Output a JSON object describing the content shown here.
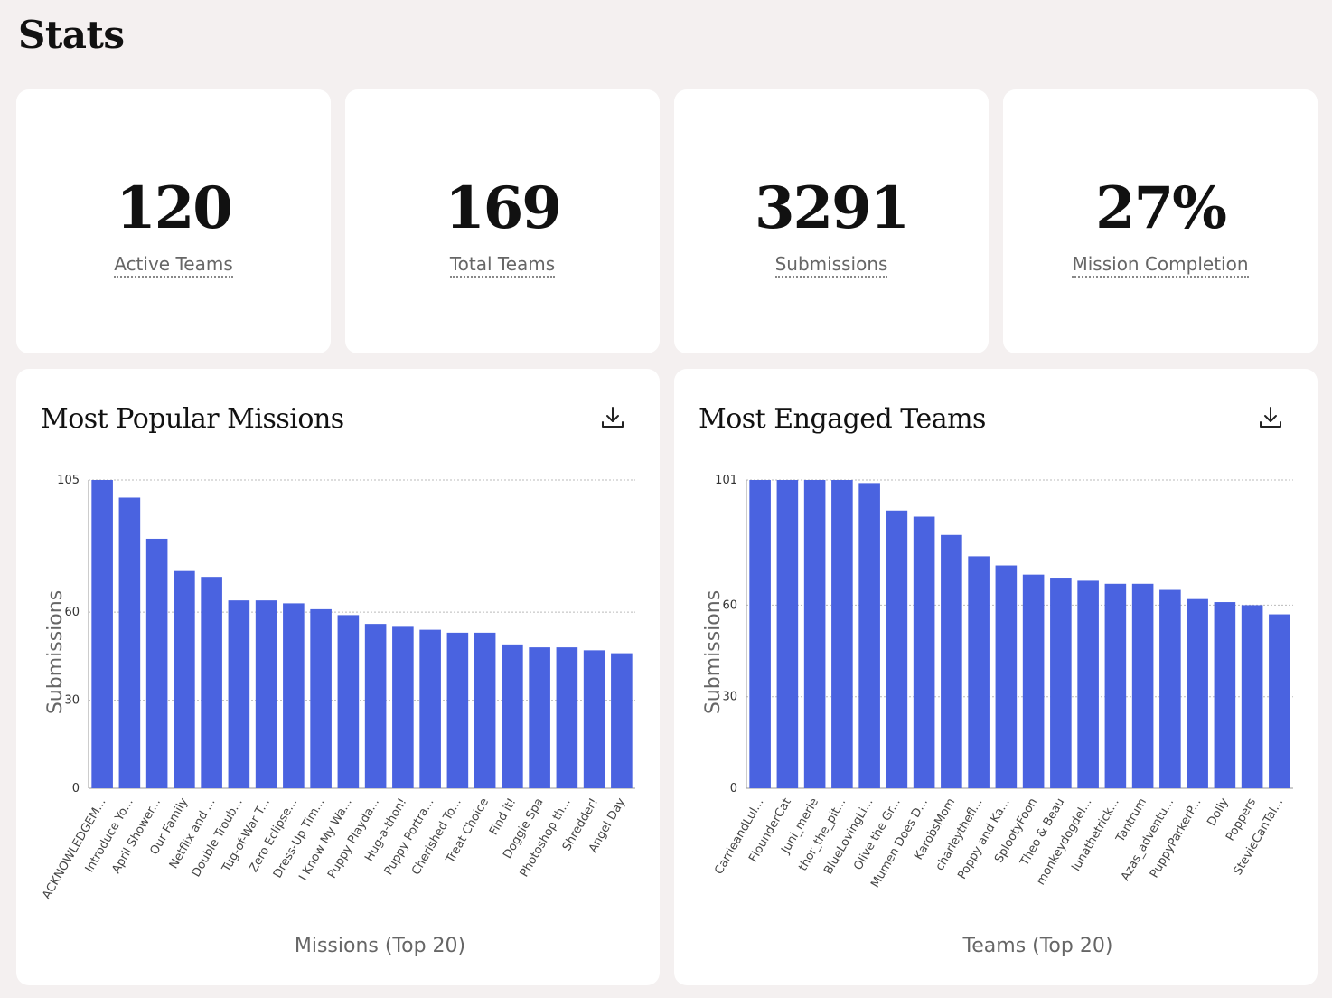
{
  "page": {
    "title": "Stats"
  },
  "stats": [
    {
      "value": "120",
      "label": "Active Teams"
    },
    {
      "value": "169",
      "label": "Total Teams"
    },
    {
      "value": "3291",
      "label": "Submissions"
    },
    {
      "value": "27%",
      "label": "Mission Completion"
    }
  ],
  "colors": {
    "bar": "#4a63e0",
    "background": "#f4f0f0",
    "card": "#ffffff"
  },
  "charts": {
    "missions": {
      "title": "Most Popular Missions",
      "download_icon": "download-icon"
    },
    "teams": {
      "title": "Most Engaged Teams",
      "download_icon": "download-icon"
    }
  },
  "chart_data": [
    {
      "type": "bar",
      "title": "Most Popular Missions",
      "xlabel": "Missions (Top 20)",
      "ylabel": "Submissions",
      "ylim": [
        0,
        105
      ],
      "yticks": [
        0,
        30,
        60,
        105
      ],
      "grid": true,
      "categories": [
        "ACKNOWLEDGEM...",
        "Introduce Yo...",
        "April Shower...",
        "Our Family",
        "Netflix and ...",
        "Double Troub...",
        "Tug-of-War T...",
        "Zero Eclipse...",
        "Dress-Up Tim...",
        "I Know My Wa...",
        "Puppy Playda...",
        "Hug-a-thon!",
        "Puppy Portra...",
        "Cherished To...",
        "Treat Choice",
        "Find it!",
        "Doggie Spa",
        "Photoshop th...",
        "Shredder!",
        "Angel Day"
      ],
      "values": [
        105,
        99,
        85,
        74,
        72,
        64,
        64,
        63,
        61,
        59,
        56,
        55,
        54,
        53,
        53,
        49,
        48,
        48,
        47,
        46
      ]
    },
    {
      "type": "bar",
      "title": "Most Engaged Teams",
      "xlabel": "Teams (Top 20)",
      "ylabel": "Submissions",
      "ylim": [
        0,
        101
      ],
      "yticks": [
        0,
        30,
        60,
        101
      ],
      "grid": true,
      "categories": [
        "CarrieandLul...",
        "FlounderCat",
        "Juni_merle",
        "thor_the_pit...",
        "BlueLovingLi...",
        "Olive the Gr...",
        "Mumen Does D...",
        "KarobsMom",
        "charleythefl...",
        "Poppy and Ka...",
        "SplootyFoon",
        "Theo & Beau",
        "monkeydogdel...",
        "lunathetrick...",
        "Tantrum",
        "Azas_adventu...",
        "PuppyParkerP...",
        "Dolly",
        "Poppers",
        "StevieCanTal..."
      ],
      "values": [
        101,
        101,
        101,
        101,
        100,
        91,
        89,
        83,
        76,
        73,
        70,
        69,
        68,
        67,
        67,
        65,
        62,
        61,
        60,
        57
      ]
    }
  ]
}
